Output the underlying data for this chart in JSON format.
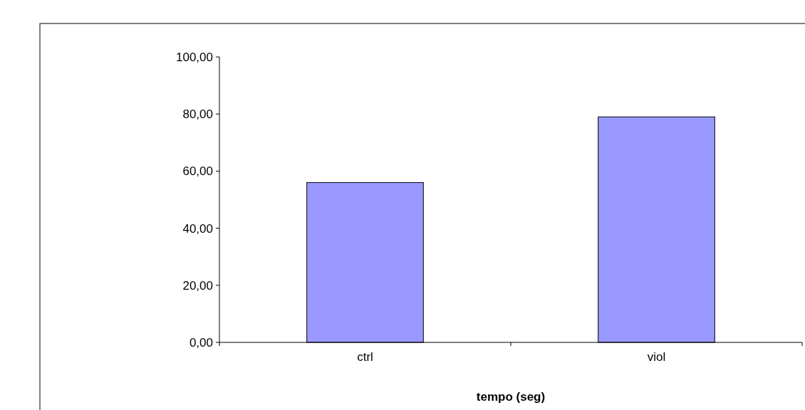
{
  "chart_data": {
    "type": "bar",
    "xlabel": "tempo (seg)",
    "categories": [
      "ctrl",
      "viol"
    ],
    "values": [
      56,
      79
    ],
    "color": "#9999ff",
    "ylim": [
      0,
      100
    ],
    "yticks": [
      {
        "value": 0,
        "label": "0,00"
      },
      {
        "value": 20,
        "label": "20,00"
      },
      {
        "value": 40,
        "label": "40,00"
      },
      {
        "value": 60,
        "label": "60,00"
      },
      {
        "value": 80,
        "label": "80,00"
      },
      {
        "value": 100,
        "label": "100,00"
      }
    ]
  }
}
